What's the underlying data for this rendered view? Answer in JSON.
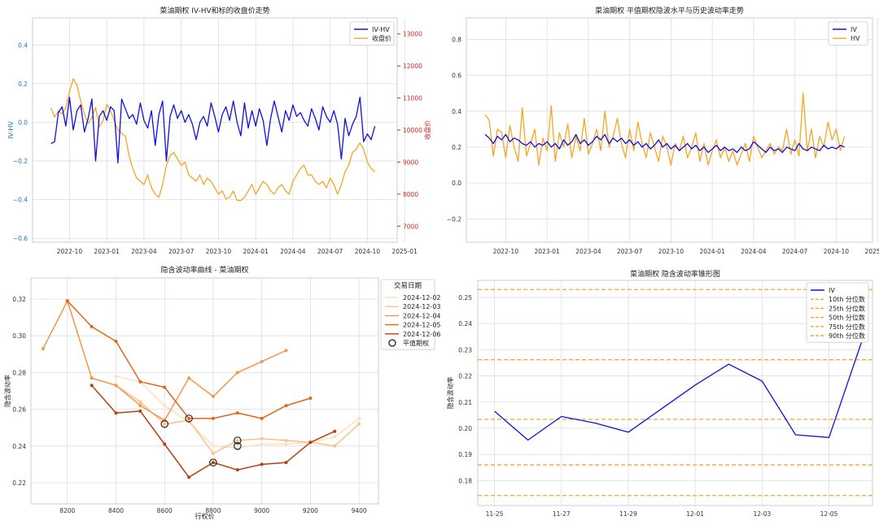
{
  "chart_data": [
    {
      "id": "p1",
      "type": "line",
      "title": "菜油期权 IV-HV和标的收盘价走势",
      "xlabel": "",
      "ylabel": "IV-HV",
      "ylabel_right": "收盘价",
      "xticks": [
        "2022-10",
        "2023-01",
        "2023-04",
        "2023-07",
        "2023-10",
        "2024-01",
        "2024-04",
        "2024-07",
        "2024-10",
        "2025-01"
      ],
      "yticks_left": [
        "−0.6",
        "−0.4",
        "−0.2",
        "0.0",
        "0.2",
        "0.4"
      ],
      "yticks_right": [
        "7000",
        "8000",
        "9000",
        "10000",
        "11000",
        "12000",
        "13000"
      ],
      "ylim": [
        -0.62,
        0.54
      ],
      "ylim_right": [
        6500,
        13500
      ],
      "x_range": [
        0,
        9.4
      ],
      "legend": [
        "IV-HV",
        "收盘价"
      ],
      "legend_loc": "top-right",
      "series": [
        {
          "name": "IV-HV",
          "color": "#1010e0",
          "axis": "left",
          "x": [
            0.1,
            0.2,
            0.3,
            0.4,
            0.5,
            0.6,
            0.7,
            0.8,
            0.9,
            1.0,
            1.1,
            1.2,
            1.3,
            1.4,
            1.5,
            1.6,
            1.7,
            1.8,
            1.9,
            2.0,
            2.1,
            2.2,
            2.3,
            2.4,
            2.5,
            2.6,
            2.7,
            2.8,
            2.9,
            3.0,
            3.1,
            3.2,
            3.3,
            3.4,
            3.5,
            3.6,
            3.7,
            3.8,
            3.9,
            4.0,
            4.1,
            4.2,
            4.3,
            4.4,
            4.5,
            4.6,
            4.7,
            4.8,
            4.9,
            5.0,
            5.1,
            5.2,
            5.3,
            5.4,
            5.5,
            5.6,
            5.7,
            5.8,
            5.9,
            6.0,
            6.1,
            6.2,
            6.3,
            6.4,
            6.5,
            6.6,
            6.7,
            6.8,
            6.9,
            7.0,
            7.1,
            7.2,
            7.3,
            7.4,
            7.5,
            7.6,
            7.7,
            7.8,
            7.9,
            8.0,
            8.1,
            8.2,
            8.3,
            8.4,
            8.5,
            8.6,
            8.7,
            8.8
          ],
          "y": [
            -0.11,
            -0.1,
            0.05,
            0.08,
            -0.02,
            0.13,
            -0.04,
            0.06,
            0.09,
            -0.05,
            0.02,
            0.12,
            -0.2,
            0.03,
            0.06,
            0.01,
            0.08,
            0.06,
            -0.21,
            0.12,
            0.07,
            0.02,
            0.04,
            -0.01,
            0.1,
            0.01,
            -0.03,
            0.06,
            -0.12,
            0.04,
            0.11,
            -0.2,
            0.03,
            0.09,
            0.02,
            0.06,
            0.0,
            0.04,
            -0.01,
            -0.09,
            0.0,
            0.03,
            -0.02,
            0.1,
            0.03,
            -0.05,
            0.04,
            0.08,
            0.01,
            0.11,
            0.0,
            -0.07,
            0.1,
            -0.03,
            0.06,
            -0.02,
            0.07,
            0.01,
            -0.12,
            0.02,
            0.11,
            0.03,
            -0.05,
            0.06,
            0.01,
            0.09,
            0.03,
            0.05,
            0.01,
            -0.02,
            0.07,
            0.02,
            -0.04,
            0.08,
            0.03,
            0.0,
            0.06,
            -0.01,
            -0.19,
            0.02,
            -0.07,
            -0.01,
            0.03,
            0.13,
            -0.1,
            -0.06,
            -0.09,
            -0.02
          ]
        },
        {
          "name": "收盘价",
          "color": "#f5a623",
          "axis": "right",
          "x": [
            0.1,
            0.2,
            0.3,
            0.4,
            0.5,
            0.6,
            0.7,
            0.8,
            0.9,
            1.0,
            1.1,
            1.2,
            1.3,
            1.4,
            1.5,
            1.6,
            1.7,
            1.8,
            1.9,
            2.0,
            2.1,
            2.2,
            2.3,
            2.4,
            2.5,
            2.6,
            2.7,
            2.8,
            2.9,
            3.0,
            3.1,
            3.2,
            3.3,
            3.4,
            3.5,
            3.6,
            3.7,
            3.8,
            3.9,
            4.0,
            4.1,
            4.2,
            4.3,
            4.4,
            4.5,
            4.6,
            4.7,
            4.8,
            4.9,
            5.0,
            5.1,
            5.2,
            5.3,
            5.4,
            5.5,
            5.6,
            5.7,
            5.8,
            5.9,
            6.0,
            6.1,
            6.2,
            6.3,
            6.4,
            6.5,
            6.6,
            6.7,
            6.8,
            6.9,
            7.0,
            7.1,
            7.2,
            7.3,
            7.4,
            7.5,
            7.6,
            7.7,
            7.8,
            7.9,
            8.0,
            8.1,
            8.2,
            8.3,
            8.4,
            8.5,
            8.6,
            8.7,
            8.8
          ],
          "y": [
            10700,
            10400,
            10600,
            10500,
            10700,
            11200,
            11600,
            11400,
            10900,
            10500,
            10200,
            10400,
            10700,
            10100,
            10300,
            10800,
            10600,
            10300,
            10000,
            9900,
            9800,
            9200,
            8800,
            8500,
            8400,
            8300,
            8600,
            8200,
            8000,
            7900,
            8300,
            8900,
            9200,
            9300,
            9100,
            8900,
            9000,
            8600,
            8500,
            8400,
            8600,
            8300,
            8500,
            8400,
            8200,
            8000,
            8100,
            7850,
            7900,
            8100,
            7800,
            7800,
            7900,
            8100,
            8300,
            8000,
            8200,
            8400,
            8300,
            8100,
            8000,
            8200,
            8300,
            8100,
            8000,
            8400,
            8600,
            8800,
            8900,
            8600,
            8600,
            8400,
            8300,
            8400,
            8200,
            8500,
            8300,
            8000,
            8300,
            8700,
            8900,
            9300,
            9400,
            9600,
            9400,
            9000,
            8800,
            8700
          ]
        }
      ]
    },
    {
      "id": "p2",
      "type": "line",
      "title": "菜油期权 平值期权隐波水平与历史波动率走势",
      "xlabel": "",
      "ylabel": "",
      "xticks": [
        "2022-10",
        "2023-01",
        "2023-04",
        "2023-07",
        "2023-10",
        "2024-01",
        "2024-04",
        "2024-07",
        "2024-10",
        "2025-01"
      ],
      "yticks": [
        "−0.2",
        "0.0",
        "0.2",
        "0.4",
        "0.6",
        "0.8"
      ],
      "ylim": [
        -0.33,
        0.92
      ],
      "x_range": [
        0,
        9.4
      ],
      "legend": [
        "IV",
        "HV"
      ],
      "legend_loc": "top-right",
      "series": [
        {
          "name": "IV",
          "color": "#1010e0",
          "x": [
            0.1,
            0.2,
            0.3,
            0.4,
            0.5,
            0.6,
            0.7,
            0.8,
            0.9,
            1.0,
            1.1,
            1.2,
            1.3,
            1.4,
            1.5,
            1.6,
            1.7,
            1.8,
            1.9,
            2.0,
            2.1,
            2.2,
            2.3,
            2.4,
            2.5,
            2.6,
            2.7,
            2.8,
            2.9,
            3.0,
            3.1,
            3.2,
            3.3,
            3.4,
            3.5,
            3.6,
            3.7,
            3.8,
            3.9,
            4.0,
            4.1,
            4.2,
            4.3,
            4.4,
            4.5,
            4.6,
            4.7,
            4.8,
            4.9,
            5.0,
            5.1,
            5.2,
            5.3,
            5.4,
            5.5,
            5.6,
            5.7,
            5.8,
            5.9,
            6.0,
            6.1,
            6.2,
            6.3,
            6.4,
            6.5,
            6.6,
            6.7,
            6.8,
            6.9,
            7.0,
            7.1,
            7.2,
            7.3,
            7.4,
            7.5,
            7.6,
            7.7,
            7.8,
            7.9,
            8.0,
            8.1,
            8.2,
            8.3,
            8.4,
            8.5,
            8.6,
            8.7,
            8.8
          ],
          "y": [
            0.27,
            0.25,
            0.22,
            0.26,
            0.24,
            0.27,
            0.23,
            0.25,
            0.24,
            0.22,
            0.21,
            0.23,
            0.2,
            0.22,
            0.21,
            0.23,
            0.2,
            0.22,
            0.19,
            0.24,
            0.21,
            0.23,
            0.27,
            0.22,
            0.24,
            0.21,
            0.23,
            0.26,
            0.24,
            0.27,
            0.22,
            0.25,
            0.23,
            0.25,
            0.22,
            0.24,
            0.21,
            0.23,
            0.2,
            0.22,
            0.19,
            0.21,
            0.24,
            0.2,
            0.22,
            0.19,
            0.21,
            0.18,
            0.2,
            0.22,
            0.19,
            0.21,
            0.18,
            0.2,
            0.17,
            0.19,
            0.21,
            0.18,
            0.2,
            0.18,
            0.19,
            0.17,
            0.2,
            0.18,
            0.19,
            0.23,
            0.21,
            0.19,
            0.17,
            0.2,
            0.18,
            0.19,
            0.17,
            0.2,
            0.19,
            0.18,
            0.22,
            0.19,
            0.18,
            0.2,
            0.19,
            0.18,
            0.21,
            0.19,
            0.2,
            0.19,
            0.21,
            0.2
          ]
        },
        {
          "name": "HV",
          "color": "#f5a623",
          "x": [
            0.1,
            0.2,
            0.3,
            0.4,
            0.5,
            0.6,
            0.7,
            0.8,
            0.9,
            1.0,
            1.1,
            1.2,
            1.3,
            1.4,
            1.5,
            1.6,
            1.7,
            1.8,
            1.9,
            2.0,
            2.1,
            2.2,
            2.3,
            2.4,
            2.5,
            2.6,
            2.7,
            2.8,
            2.9,
            3.0,
            3.1,
            3.2,
            3.3,
            3.4,
            3.5,
            3.6,
            3.7,
            3.8,
            3.9,
            4.0,
            4.1,
            4.2,
            4.3,
            4.4,
            4.5,
            4.6,
            4.7,
            4.8,
            4.9,
            5.0,
            5.1,
            5.2,
            5.3,
            5.4,
            5.5,
            5.6,
            5.7,
            5.8,
            5.9,
            6.0,
            6.1,
            6.2,
            6.3,
            6.4,
            6.5,
            6.6,
            6.7,
            6.8,
            6.9,
            7.0,
            7.1,
            7.2,
            7.3,
            7.4,
            7.5,
            7.6,
            7.7,
            7.8,
            7.9,
            8.0,
            8.1,
            8.2,
            8.3,
            8.4,
            8.5,
            8.6,
            8.7,
            8.8
          ],
          "y": [
            0.38,
            0.35,
            0.15,
            0.3,
            0.28,
            0.14,
            0.32,
            0.2,
            0.12,
            0.42,
            0.15,
            0.22,
            0.3,
            0.1,
            0.25,
            0.18,
            0.43,
            0.12,
            0.28,
            0.2,
            0.33,
            0.14,
            0.26,
            0.18,
            0.36,
            0.16,
            0.22,
            0.3,
            0.18,
            0.4,
            0.2,
            0.26,
            0.36,
            0.22,
            0.14,
            0.3,
            0.18,
            0.34,
            0.22,
            0.14,
            0.28,
            0.2,
            0.12,
            0.26,
            0.2,
            0.1,
            0.22,
            0.18,
            0.26,
            0.14,
            0.2,
            0.28,
            0.12,
            0.22,
            0.1,
            0.18,
            0.24,
            0.14,
            0.2,
            0.12,
            0.18,
            0.1,
            0.16,
            0.22,
            0.12,
            0.26,
            0.2,
            0.14,
            0.18,
            0.22,
            0.16,
            0.2,
            0.18,
            0.3,
            0.16,
            0.24,
            0.15,
            0.5,
            0.18,
            0.3,
            0.14,
            0.26,
            0.2,
            0.34,
            0.24,
            0.3,
            0.18,
            0.26
          ]
        }
      ]
    },
    {
      "id": "p3",
      "type": "line",
      "title": "隐含波动率曲线 - 菜油期权",
      "xlabel": "行权价",
      "ylabel": "隐含波动率",
      "xticks": [
        "8200",
        "8400",
        "8600",
        "8800",
        "9000",
        "9200",
        "9400"
      ],
      "yticks": [
        "0.22",
        "0.24",
        "0.26",
        "0.28",
        "0.30",
        "0.32"
      ],
      "xlim": [
        8050,
        9480
      ],
      "ylim": [
        0.2085,
        0.3315
      ],
      "legend_title": "交易日期",
      "legend": [
        "2024-12-02",
        "2024-12-03",
        "2024-12-04",
        "2024-12-05",
        "2024-12-06",
        "平值期权"
      ],
      "legend_loc": "top-right",
      "series": [
        {
          "name": "2024-12-02",
          "color": "#fde0c2",
          "x": [
            8400,
            8500,
            8600,
            8700,
            8800,
            8900,
            9000,
            9100,
            9200,
            9300,
            9400
          ],
          "y": [
            0.278,
            0.275,
            0.262,
            0.253,
            0.24,
            0.239,
            0.241,
            0.241,
            0.242,
            0.245,
            0.255
          ]
        },
        {
          "name": "2024-12-03",
          "color": "#fdc088",
          "x": [
            8300,
            8400,
            8500,
            8600,
            8700,
            8800,
            8900,
            9000,
            9100,
            9200,
            9300,
            9400
          ],
          "y": [
            0.277,
            0.273,
            0.264,
            0.252,
            0.254,
            0.236,
            0.243,
            0.244,
            0.243,
            0.242,
            0.24,
            0.252
          ]
        },
        {
          "name": "2024-12-04",
          "color": "#f5954a",
          "x": [
            8100,
            8200,
            8300,
            8400,
            8500,
            8600,
            8700,
            8800,
            8900,
            9000,
            9100
          ],
          "y": [
            0.293,
            0.319,
            0.277,
            0.273,
            0.262,
            0.254,
            0.277,
            0.267,
            0.28,
            0.286,
            0.292
          ]
        },
        {
          "name": "2024-12-05",
          "color": "#e0661c",
          "x": [
            8200,
            8300,
            8400,
            8500,
            8600,
            8700,
            8800,
            8900,
            9000,
            9100,
            9200
          ],
          "y": [
            0.319,
            0.305,
            0.297,
            0.275,
            0.272,
            0.255,
            0.255,
            0.258,
            0.255,
            0.262,
            0.266
          ]
        },
        {
          "name": "2024-12-06",
          "color": "#b54010",
          "x": [
            8300,
            8400,
            8500,
            8600,
            8700,
            8800,
            8900,
            9000,
            9100,
            9200,
            9300
          ],
          "y": [
            0.273,
            0.258,
            0.259,
            0.241,
            0.223,
            0.231,
            0.227,
            0.23,
            0.231,
            0.242,
            0.248
          ]
        }
      ],
      "atm_points": {
        "x": [
          8600,
          8700,
          8800,
          8900,
          8900
        ],
        "y": [
          0.252,
          0.255,
          0.231,
          0.243,
          0.24
        ]
      }
    },
    {
      "id": "p4",
      "type": "line",
      "title": "菜油期权 隐含波动率锥形图",
      "xlabel": "",
      "ylabel": "隐含波动率",
      "xticks": [
        "11-25",
        "11-27",
        "11-29",
        "12-01",
        "12-03",
        "12-05"
      ],
      "yticks": [
        "0.18",
        "0.19",
        "0.20",
        "0.21",
        "0.22",
        "0.23",
        "0.24",
        "0.25"
      ],
      "xlim": [
        -0.5,
        11.3
      ],
      "ylim": [
        0.1705,
        0.2565
      ],
      "legend": [
        "IV",
        "10th 分位数",
        "25th 分位数",
        "50th 分位数",
        "75th 分位数",
        "90th 分位数"
      ],
      "legend_loc": "top-right",
      "series": [
        {
          "name": "IV",
          "color": "#1010e0",
          "x": [
            0,
            1,
            2,
            3,
            4,
            5,
            6,
            7,
            8,
            9,
            10,
            11
          ],
          "y": [
            0.2065,
            0.1955,
            0.2045,
            0.202,
            0.1985,
            0.2075,
            0.2165,
            0.2245,
            0.218,
            0.1975,
            0.1965,
            0.234
          ]
        }
      ],
      "quantiles": [
        {
          "name": "10th 分位数",
          "value": 0.1743
        },
        {
          "name": "25th 分位数",
          "value": 0.186
        },
        {
          "name": "50th 分位数",
          "value": 0.2034
        },
        {
          "name": "75th 分位数",
          "value": 0.2262
        },
        {
          "name": "90th 分位数",
          "value": 0.253
        }
      ]
    }
  ]
}
